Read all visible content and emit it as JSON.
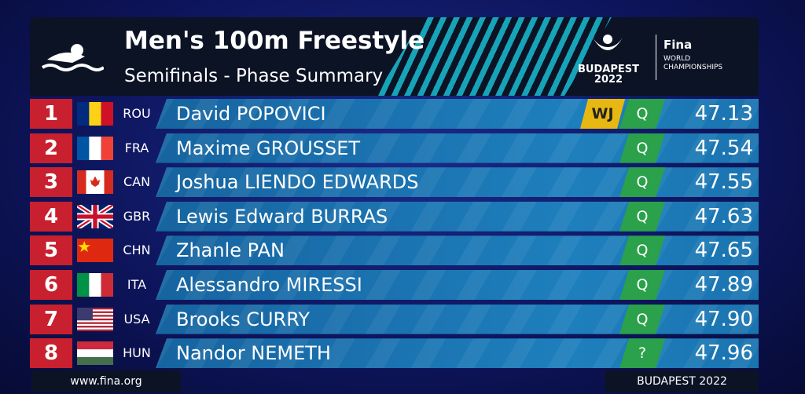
{
  "header": {
    "title": "Men's 100m Freestyle",
    "subtitle": "Semifinals - Phase Summary",
    "logo": {
      "city": "BUDAPEST",
      "year": "2022",
      "brand": "Fina",
      "event_line1": "WORLD",
      "event_line2": "CHAMPIONSHIPS"
    }
  },
  "table": {
    "rows": [
      {
        "rank": "1",
        "code": "ROU",
        "name": "David POPOVICI",
        "record": "WJ",
        "qualification": "Q",
        "time": "47.13"
      },
      {
        "rank": "2",
        "code": "FRA",
        "name": "Maxime GROUSSET",
        "qualification": "Q",
        "time": "47.54"
      },
      {
        "rank": "3",
        "code": "CAN",
        "name": "Joshua LIENDO EDWARDS",
        "qualification": "Q",
        "time": "47.55"
      },
      {
        "rank": "4",
        "code": "GBR",
        "name": "Lewis Edward BURRAS",
        "qualification": "Q",
        "time": "47.63"
      },
      {
        "rank": "5",
        "code": "CHN",
        "name": "Zhanle PAN",
        "qualification": "Q",
        "time": "47.65"
      },
      {
        "rank": "6",
        "code": "ITA",
        "name": "Alessandro MIRESSI",
        "qualification": "Q",
        "time": "47.89"
      },
      {
        "rank": "7",
        "code": "USA",
        "name": "Brooks CURRY",
        "qualification": "Q",
        "time": "47.90"
      },
      {
        "rank": "8",
        "code": "HUN",
        "name": "Nandor NEMETH",
        "qualification": "?",
        "time": "47.96"
      }
    ]
  },
  "footer": {
    "website": "www.fina.org",
    "location": "BUDAPEST 2022"
  }
}
